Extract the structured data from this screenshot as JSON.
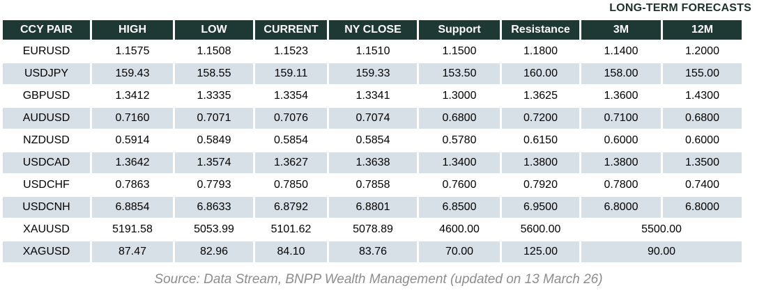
{
  "header_note": "LONG-TERM FORECASTS",
  "table": {
    "columns": [
      "CCY PAIR",
      "HIGH",
      "LOW",
      "CURRENT",
      "NY CLOSE",
      "Support",
      "Resistance",
      "3M",
      "12M"
    ],
    "rows": [
      {
        "pair": "EURUSD",
        "high": "1.1575",
        "low": "1.1508",
        "current": "1.1523",
        "ny_close": "1.1510",
        "support": "1.1500",
        "resistance": "1.1800",
        "m3": "1.1400",
        "m12": "1.2000"
      },
      {
        "pair": "USDJPY",
        "high": "159.43",
        "low": "158.55",
        "current": "159.11",
        "ny_close": "159.33",
        "support": "153.50",
        "resistance": "160.00",
        "m3": "158.00",
        "m12": "155.00"
      },
      {
        "pair": "GBPUSD",
        "high": "1.3412",
        "low": "1.3335",
        "current": "1.3354",
        "ny_close": "1.3341",
        "support": "1.3000",
        "resistance": "1.3625",
        "m3": "1.3600",
        "m12": "1.4300"
      },
      {
        "pair": "AUDUSD",
        "high": "0.7160",
        "low": "0.7071",
        "current": "0.7076",
        "ny_close": "0.7074",
        "support": "0.6800",
        "resistance": "0.7200",
        "m3": "0.7100",
        "m12": "0.6800"
      },
      {
        "pair": "NZDUSD",
        "high": "0.5914",
        "low": "0.5849",
        "current": "0.5854",
        "ny_close": "0.5854",
        "support": "0.5780",
        "resistance": "0.6150",
        "m3": "0.6000",
        "m12": "0.6000"
      },
      {
        "pair": "USDCAD",
        "high": "1.3642",
        "low": "1.3574",
        "current": "1.3627",
        "ny_close": "1.3638",
        "support": "1.3400",
        "resistance": "1.3800",
        "m3": "1.3800",
        "m12": "1.3500"
      },
      {
        "pair": "USDCHF",
        "high": "0.7863",
        "low": "0.7793",
        "current": "0.7850",
        "ny_close": "0.7858",
        "support": "0.7600",
        "resistance": "0.7920",
        "m3": "0.7800",
        "m12": "0.7400"
      },
      {
        "pair": "USDCNH",
        "high": "6.8854",
        "low": "6.8633",
        "current": "6.8792",
        "ny_close": "6.8801",
        "support": "6.8500",
        "resistance": "6.9500",
        "m3": "6.8000",
        "m12": "6.8000"
      },
      {
        "pair": "XAUUSD",
        "high": "5191.58",
        "low": "5053.99",
        "current": "5101.62",
        "ny_close": "5078.89",
        "support": "4600.00",
        "resistance": "5600.00",
        "forecast_merged": "5500.00"
      },
      {
        "pair": "XAGUSD",
        "high": "87.47",
        "low": "82.96",
        "current": "84.10",
        "ny_close": "83.76",
        "support": "70.00",
        "resistance": "125.00",
        "forecast_merged": "90.00"
      }
    ]
  },
  "footer": {
    "source_text": "Source: Data Stream, BNPP Wealth Management (updated on 13 March 26)"
  },
  "colors": {
    "header_bg": "#1e3933",
    "row_shaded": "#d7e0e6",
    "note_text": "#1c312c",
    "footer_text": "#8d8d8d"
  }
}
